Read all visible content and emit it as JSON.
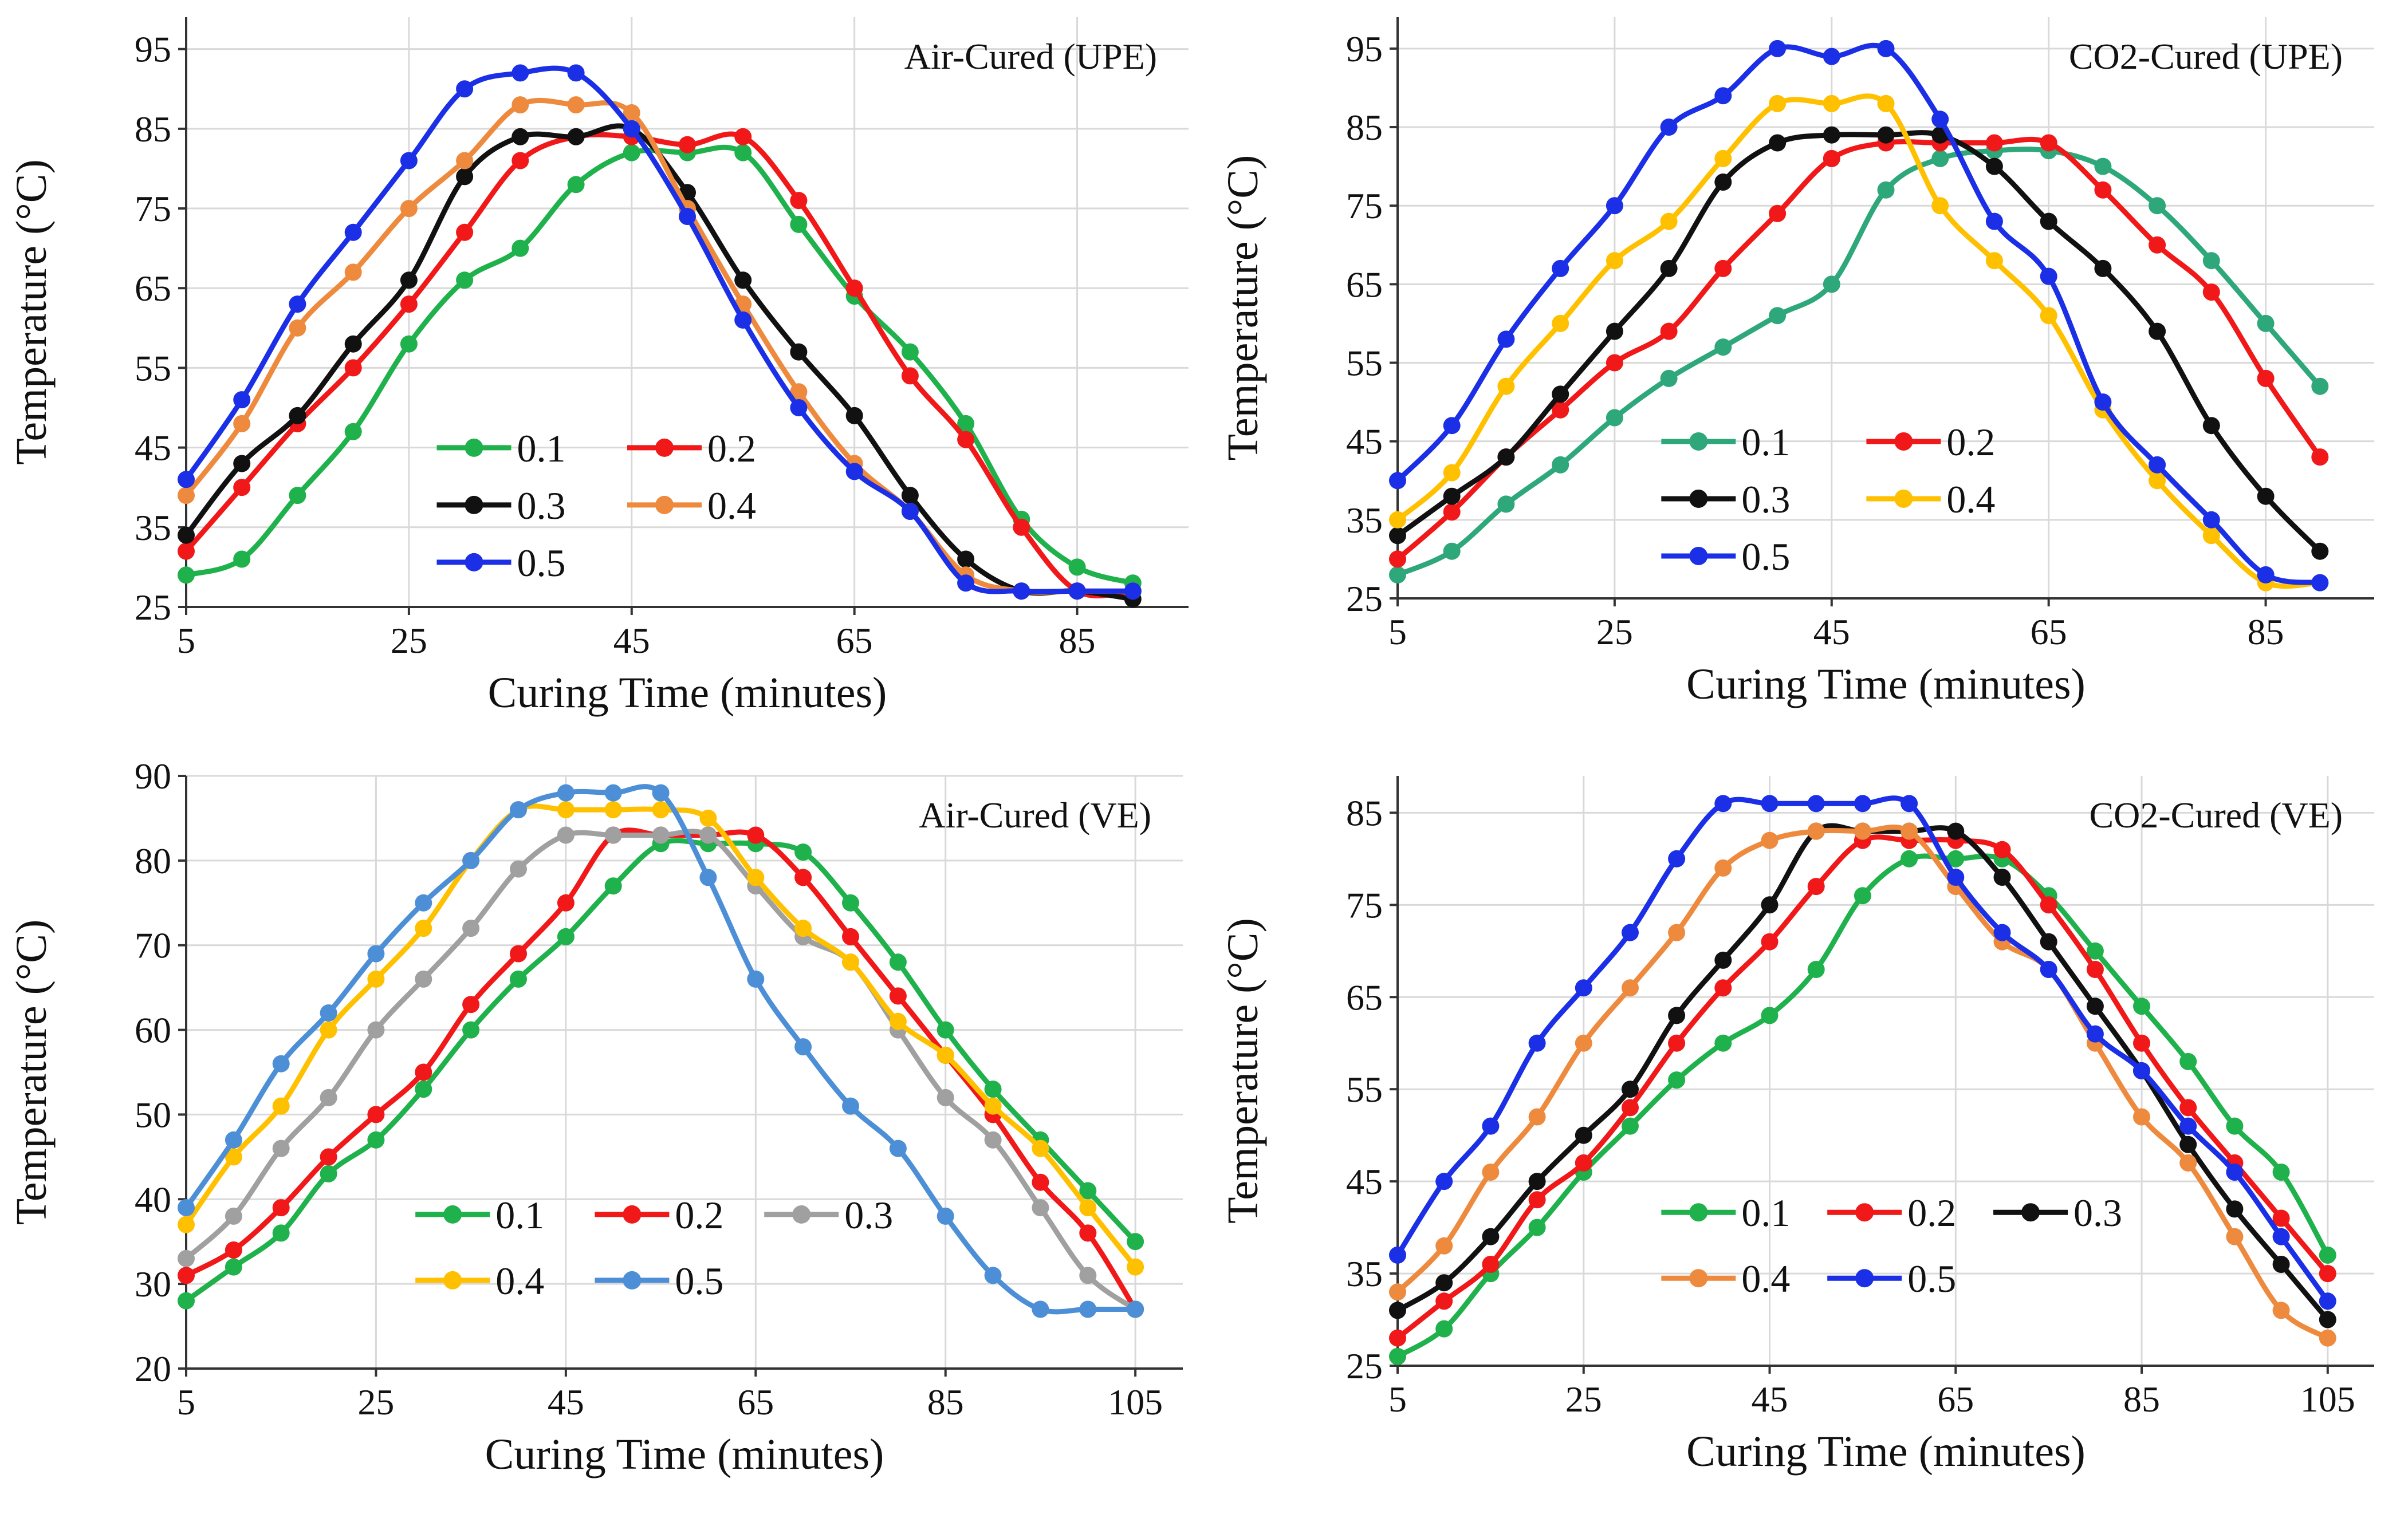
{
  "colors": {
    "green": "#1FB14B",
    "red": "#F01818",
    "black": "#111111",
    "orange": "#EE8A3E",
    "blue": "#1A2FE6",
    "gold": "#FFC000",
    "steel": "#4D8FD6",
    "gray": "#A0A0A0",
    "teal": "#2EA87A"
  },
  "chart_data": [
    {
      "type": "line",
      "title": "Air-Cured (UPE)",
      "xlabel": "Curing Time (minutes)",
      "ylabel": "Temperature (°C)",
      "xlim": [
        5,
        95
      ],
      "ylim": [
        25,
        99
      ],
      "xticks": [
        "5",
        "25",
        "45",
        "65",
        "85"
      ],
      "yticks": [
        "25",
        "35",
        "45",
        "55",
        "65",
        "75",
        "85",
        "95"
      ],
      "legend_cols": 2,
      "legend_x": [
        0.25,
        0.44
      ],
      "x": [
        5,
        10,
        15,
        20,
        25,
        30,
        35,
        40,
        45,
        50,
        55,
        60,
        65,
        70,
        75,
        80,
        85,
        90
      ],
      "series": [
        {
          "name": "0.1",
          "color": "#1FB14B",
          "values": [
            29,
            31,
            39,
            47,
            58,
            66,
            70,
            78,
            82,
            82,
            82,
            73,
            64,
            57,
            48,
            36,
            30,
            28
          ]
        },
        {
          "name": "0.2",
          "color": "#F01818",
          "values": [
            32,
            40,
            48,
            55,
            63,
            72,
            81,
            84,
            84,
            83,
            84,
            76,
            65,
            54,
            46,
            35,
            27,
            27
          ]
        },
        {
          "name": "0.3",
          "color": "#111111",
          "values": [
            34,
            43,
            49,
            58,
            66,
            79,
            84,
            84,
            85,
            77,
            66,
            57,
            49,
            39,
            31,
            27,
            27,
            26
          ]
        },
        {
          "name": "0.4",
          "color": "#EE8A3E",
          "values": [
            39,
            48,
            60,
            67,
            75,
            81,
            88,
            88,
            87,
            75,
            63,
            52,
            43,
            37,
            29,
            27,
            27,
            27
          ]
        },
        {
          "name": "0.5",
          "color": "#1A2FE6",
          "values": [
            41,
            51,
            63,
            72,
            81,
            90,
            92,
            92,
            85,
            74,
            61,
            50,
            42,
            37,
            28,
            27,
            27,
            27
          ]
        }
      ]
    },
    {
      "type": "line",
      "title": "CO2-Cured (UPE)",
      "xlabel": "Curing Time (minutes)",
      "ylabel": "Temperature (°C)",
      "xlim": [
        5,
        95
      ],
      "ylim": [
        25,
        99
      ],
      "xticks": [
        "5",
        "25",
        "45",
        "65",
        "85"
      ],
      "yticks": [
        "25",
        "35",
        "45",
        "55",
        "65",
        "75",
        "85",
        "95"
      ],
      "legend_cols": 2,
      "legend_x": [
        0.27,
        0.48
      ],
      "x": [
        5,
        10,
        15,
        20,
        25,
        30,
        35,
        40,
        45,
        50,
        55,
        60,
        65,
        70,
        75,
        80,
        85,
        90
      ],
      "series": [
        {
          "name": "0.1",
          "color": "#2EA87A",
          "values": [
            28,
            31,
            37,
            42,
            48,
            53,
            57,
            61,
            65,
            77,
            81,
            82,
            82,
            80,
            75,
            68,
            60,
            52
          ]
        },
        {
          "name": "0.2",
          "color": "#F01818",
          "values": [
            30,
            36,
            43,
            49,
            55,
            59,
            67,
            74,
            81,
            83,
            83,
            83,
            83,
            77,
            70,
            64,
            53,
            43
          ]
        },
        {
          "name": "0.3",
          "color": "#111111",
          "values": [
            33,
            38,
            43,
            51,
            59,
            67,
            78,
            83,
            84,
            84,
            84,
            80,
            73,
            67,
            59,
            47,
            38,
            31
          ]
        },
        {
          "name": "0.4",
          "color": "#FFC000",
          "values": [
            35,
            41,
            52,
            60,
            68,
            73,
            81,
            88,
            88,
            88,
            75,
            68,
            61,
            49,
            40,
            33,
            27,
            27
          ]
        },
        {
          "name": "0.5",
          "color": "#1A2FE6",
          "values": [
            40,
            47,
            58,
            67,
            75,
            85,
            89,
            95,
            94,
            95,
            86,
            73,
            66,
            50,
            42,
            35,
            28,
            27
          ]
        }
      ]
    },
    {
      "type": "line",
      "title": "Air-Cured (VE)",
      "xlabel": "Curing Time (minutes)",
      "ylabel": "Temperature (°C)",
      "xlim": [
        5,
        110
      ],
      "ylim": [
        20,
        90
      ],
      "xticks": [
        "5",
        "25",
        "45",
        "65",
        "85",
        "105"
      ],
      "yticks": [
        "20",
        "30",
        "40",
        "50",
        "60",
        "70",
        "80",
        "90"
      ],
      "legend_cols": 3,
      "legend_x": [
        0.23,
        0.41,
        0.58
      ],
      "x": [
        5,
        10,
        15,
        20,
        25,
        30,
        35,
        40,
        45,
        50,
        55,
        60,
        65,
        70,
        75,
        80,
        85,
        90,
        95,
        100,
        105
      ],
      "series": [
        {
          "name": "0.1",
          "color": "#1FB14B",
          "values": [
            28,
            32,
            36,
            43,
            47,
            53,
            60,
            66,
            71,
            77,
            82,
            82,
            82,
            81,
            75,
            68,
            60,
            53,
            47,
            41,
            35
          ]
        },
        {
          "name": "0.2",
          "color": "#F01818",
          "values": [
            31,
            34,
            39,
            45,
            50,
            55,
            63,
            69,
            75,
            83,
            83,
            83,
            83,
            78,
            71,
            64,
            57,
            50,
            42,
            36,
            27
          ]
        },
        {
          "name": "0.3",
          "color": "#A0A0A0",
          "values": [
            33,
            38,
            46,
            52,
            60,
            66,
            72,
            79,
            83,
            83,
            83,
            83,
            77,
            71,
            68,
            60,
            52,
            47,
            39,
            31,
            27
          ]
        },
        {
          "name": "0.4",
          "color": "#FFC000",
          "values": [
            37,
            45,
            51,
            60,
            66,
            72,
            80,
            86,
            86,
            86,
            86,
            85,
            78,
            72,
            68,
            61,
            57,
            51,
            46,
            39,
            32
          ]
        },
        {
          "name": "0.5",
          "color": "#4D8FD6",
          "values": [
            39,
            47,
            56,
            62,
            69,
            75,
            80,
            86,
            88,
            88,
            88,
            78,
            66,
            58,
            51,
            46,
            38,
            31,
            27,
            27,
            27
          ]
        }
      ]
    },
    {
      "type": "line",
      "title": "CO2-Cured (VE)",
      "xlabel": "Curing Time (minutes)",
      "ylabel": "Temperature (°C)",
      "xlim": [
        5,
        110
      ],
      "ylim": [
        25,
        89
      ],
      "xticks": [
        "5",
        "25",
        "45",
        "65",
        "85",
        "105"
      ],
      "yticks": [
        "25",
        "35",
        "45",
        "55",
        "65",
        "75",
        "85"
      ],
      "legend_cols": 3,
      "legend_x": [
        0.27,
        0.44,
        0.61
      ],
      "x": [
        5,
        10,
        15,
        20,
        25,
        30,
        35,
        40,
        45,
        50,
        55,
        60,
        65,
        70,
        75,
        80,
        85,
        90,
        95,
        100,
        105
      ],
      "series": [
        {
          "name": "0.1",
          "color": "#1FB14B",
          "values": [
            26,
            29,
            35,
            40,
            46,
            51,
            56,
            60,
            63,
            68,
            76,
            80,
            80,
            80,
            76,
            70,
            64,
            58,
            51,
            46,
            37
          ]
        },
        {
          "name": "0.2",
          "color": "#F01818",
          "values": [
            28,
            32,
            36,
            43,
            47,
            53,
            60,
            66,
            71,
            77,
            82,
            82,
            82,
            81,
            75,
            68,
            60,
            53,
            47,
            41,
            35
          ]
        },
        {
          "name": "0.3",
          "color": "#111111",
          "values": [
            31,
            34,
            39,
            45,
            50,
            55,
            63,
            69,
            75,
            83,
            83,
            83,
            83,
            78,
            71,
            64,
            57,
            49,
            42,
            36,
            30
          ]
        },
        {
          "name": "0.4",
          "color": "#EE8A3E",
          "values": [
            33,
            38,
            46,
            52,
            60,
            66,
            72,
            79,
            82,
            83,
            83,
            83,
            77,
            71,
            68,
            60,
            52,
            47,
            39,
            31,
            28
          ]
        },
        {
          "name": "0.5",
          "color": "#1A2FE6",
          "values": [
            37,
            45,
            51,
            60,
            66,
            72,
            80,
            86,
            86,
            86,
            86,
            86,
            78,
            72,
            68,
            61,
            57,
            51,
            46,
            39,
            32
          ]
        }
      ]
    }
  ]
}
